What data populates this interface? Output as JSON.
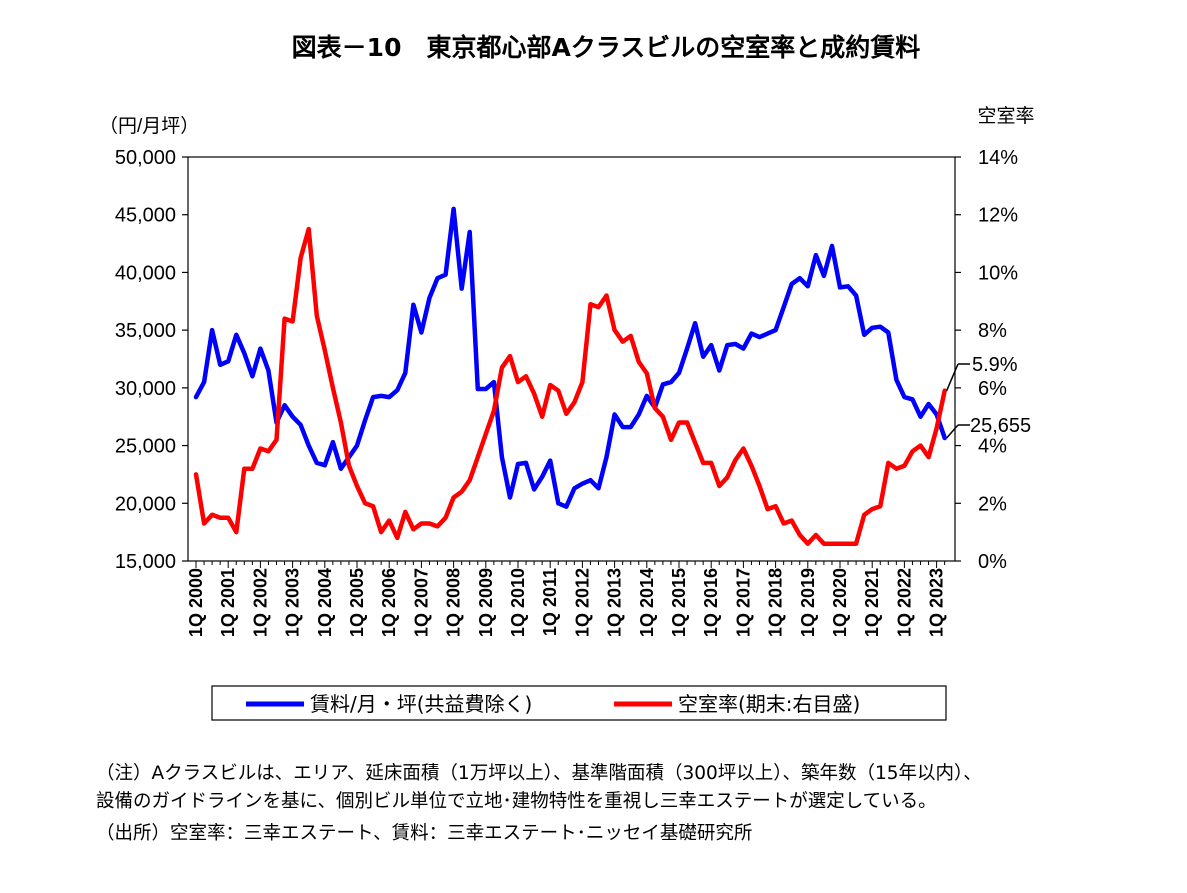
{
  "chart_data": {
    "type": "line",
    "title": "図表－10　東京都心部Aクラスビルの空室率と成約賃料",
    "ylabel_left": "（円/月坪）",
    "ylabel_right": "空室率",
    "y_left_range": [
      15000,
      50000
    ],
    "y_left_ticks": [
      "15,000",
      "20,000",
      "25,000",
      "30,000",
      "35,000",
      "40,000",
      "45,000",
      "50,000"
    ],
    "y_right_range": [
      0,
      14
    ],
    "y_right_ticks": [
      "0%",
      "2%",
      "4%",
      "6%",
      "8%",
      "10%",
      "12%",
      "14%"
    ],
    "x_tick_labels": [
      "1Q 2000",
      "1Q 2001",
      "1Q 2002",
      "1Q 2003",
      "1Q 2004",
      "1Q 2005",
      "1Q 2006",
      "1Q 2007",
      "1Q 2008",
      "1Q 2009",
      "1Q 2010",
      "1Q 2011",
      "1Q 2012",
      "1Q 2013",
      "1Q 2014",
      "1Q 2015",
      "1Q 2016",
      "1Q 2017",
      "1Q 2018",
      "1Q 2019",
      "1Q 2020",
      "1Q 2021",
      "1Q 2022",
      "1Q 2023"
    ],
    "x_period": "quarterly, 1Q 2000 – 3Q 2023",
    "series": [
      {
        "name": "賃料/月・坪(共益費除く)",
        "axis": "left",
        "color": "#0000ff",
        "values": [
          29200,
          30500,
          35000,
          32000,
          32300,
          34600,
          33000,
          31000,
          33400,
          31500,
          27000,
          28500,
          27500,
          26800,
          25000,
          23500,
          23300,
          25300,
          23000,
          24000,
          25000,
          27200,
          29200,
          29300,
          29200,
          29800,
          31300,
          37200,
          34800,
          37800,
          39500,
          39800,
          45500,
          38600,
          43500,
          29900,
          29900,
          30500,
          24000,
          20500,
          23400,
          23500,
          21200,
          22300,
          23700,
          20000,
          19700,
          21300,
          21700,
          22000,
          21300,
          24000,
          27700,
          26600,
          26600,
          27700,
          29300,
          28300,
          30300,
          30500,
          31300,
          33400,
          35600,
          32700,
          33700,
          31500,
          33700,
          33800,
          33400,
          34700,
          34400,
          34700,
          35000,
          37000,
          39000,
          39500,
          38800,
          41500,
          39700,
          42300,
          38700,
          38800,
          38000,
          34600,
          35200,
          35300,
          34800,
          30700,
          29200,
          29000,
          27500,
          28600,
          27700,
          25655
        ]
      },
      {
        "name": "空室率(期末:右目盛)",
        "axis": "right",
        "color": "#ff0000",
        "values": [
          3.0,
          1.3,
          1.6,
          1.5,
          1.5,
          1.0,
          3.2,
          3.2,
          3.9,
          3.8,
          4.2,
          8.4,
          8.3,
          10.5,
          11.5,
          8.5,
          7.3,
          6.0,
          4.8,
          3.3,
          2.6,
          2.0,
          1.9,
          1.0,
          1.4,
          0.8,
          1.7,
          1.1,
          1.3,
          1.3,
          1.2,
          1.5,
          2.2,
          2.4,
          2.8,
          3.6,
          4.4,
          5.2,
          6.7,
          7.1,
          6.2,
          6.4,
          5.8,
          5.0,
          6.1,
          5.9,
          5.1,
          5.5,
          6.2,
          8.9,
          8.8,
          9.2,
          8.0,
          7.6,
          7.8,
          6.9,
          6.5,
          5.3,
          5.0,
          4.2,
          4.8,
          4.8,
          4.1,
          3.4,
          3.4,
          2.6,
          2.9,
          3.5,
          3.9,
          3.3,
          2.6,
          1.8,
          1.9,
          1.3,
          1.4,
          0.9,
          0.6,
          0.9,
          0.6,
          0.6,
          0.6,
          0.6,
          0.6,
          1.6,
          1.8,
          1.9,
          3.4,
          3.2,
          3.3,
          3.8,
          4.0,
          3.6,
          4.6,
          5.9
        ]
      }
    ],
    "end_labels": {
      "vacancy": "5.9%",
      "rent": "25,655"
    },
    "legend": {
      "placement": "bottom",
      "rent_label": "賃料/月・坪(共益費除く)",
      "vacancy_label": "空室率(期末:右目盛)"
    }
  },
  "notes": {
    "line1": "（注）Aクラスビルは、エリア、延床面積（1万坪以上）、基準階面積（300坪以上）、築年数（15年以内）、",
    "line2": "設備のガイドラインを基に、個別ビル単位で立地･建物特性を重視し三幸エステートが選定している。",
    "line3": "（出所）空室率：三幸エステート、賃料：三幸エステート･ニッセイ基礎研究所"
  }
}
